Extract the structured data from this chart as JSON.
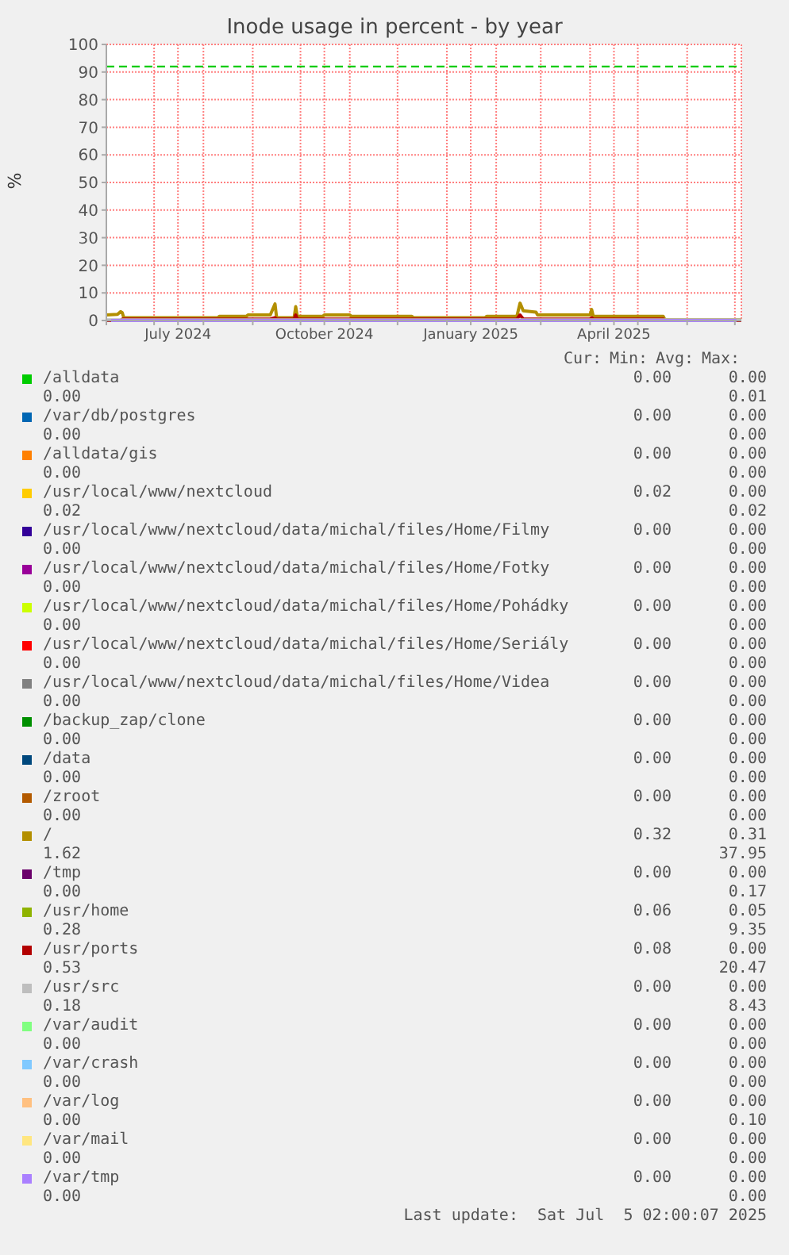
{
  "chart_data": {
    "type": "line",
    "title": "Inode usage in percent - by year",
    "ylabel": "%",
    "x": [
      "2024-06-01",
      "2024-06-08",
      "2024-06-10",
      "2024-06-11",
      "2024-06-12",
      "2024-08-10",
      "2024-08-11",
      "2024-08-28",
      "2024-08-29",
      "2024-09-12",
      "2024-09-15",
      "2024-09-16",
      "2024-09-27",
      "2024-09-28",
      "2024-09-29",
      "2024-10-15",
      "2024-10-16",
      "2024-11-01",
      "2024-11-02",
      "2024-12-10",
      "2024-12-11",
      "2025-01-25",
      "2025-01-26",
      "2025-02-14",
      "2025-02-16",
      "2025-02-18",
      "2025-02-26",
      "2025-02-27",
      "2025-03-01",
      "2025-03-02",
      "2025-04-01",
      "2025-04-02",
      "2025-04-03",
      "2025-05-17",
      "2025-05-18",
      "2025-07-05"
    ],
    "xlim": [
      "2024-06-01",
      "2025-07-05T02:00"
    ],
    "xticks": [
      {
        "value": "2024-06-01",
        "label": null
      },
      {
        "value": "2024-07-01",
        "label": null
      },
      {
        "value": "2024-07-16",
        "label": "July 2024"
      },
      {
        "value": "2024-08-01",
        "label": null
      },
      {
        "value": "2024-09-01",
        "label": null
      },
      {
        "value": "2024-10-01",
        "label": null
      },
      {
        "value": "2024-10-16",
        "label": "October 2024"
      },
      {
        "value": "2024-11-01",
        "label": null
      },
      {
        "value": "2024-12-01",
        "label": null
      },
      {
        "value": "2025-01-01",
        "label": null
      },
      {
        "value": "2025-01-16",
        "label": "January 2025"
      },
      {
        "value": "2025-02-01",
        "label": null
      },
      {
        "value": "2025-03-01",
        "label": null
      },
      {
        "value": "2025-04-01",
        "label": null
      },
      {
        "value": "2025-04-16",
        "label": "April 2025"
      },
      {
        "value": "2025-05-01",
        "label": null
      },
      {
        "value": "2025-06-01",
        "label": null
      },
      {
        "value": "2025-07-01",
        "label": null
      }
    ],
    "ylim": [
      0,
      100
    ],
    "yticks": [
      0,
      10,
      20,
      30,
      40,
      50,
      60,
      70,
      80,
      90,
      100
    ],
    "grid": true,
    "legend": "bottom",
    "marker": "none",
    "line_style": "solid",
    "ref_lines": [
      {
        "axis": "y",
        "value": 92,
        "color": "#00cc00",
        "line_style": "dashed"
      }
    ],
    "series": [
      {
        "name": "/alldata",
        "color": "#00cc00",
        "values": [
          null,
          null,
          null,
          null,
          null,
          null,
          null,
          null,
          null,
          null,
          null,
          null,
          null,
          null,
          null,
          null,
          null,
          null,
          null,
          null,
          null,
          null,
          null,
          null,
          null,
          null,
          null,
          null,
          null,
          null,
          null,
          null,
          null,
          null,
          null,
          null
        ]
      },
      {
        "name": "/var/db/postgres",
        "color": "#0066b3",
        "values": [
          null,
          null,
          null,
          null,
          null,
          null,
          null,
          null,
          null,
          null,
          null,
          null,
          null,
          null,
          null,
          null,
          null,
          null,
          null,
          null,
          null,
          null,
          null,
          null,
          null,
          null,
          null,
          null,
          null,
          null,
          null,
          null,
          null,
          null,
          null,
          null
        ]
      },
      {
        "name": "/alldata/gis",
        "color": "#ff8000",
        "values": [
          null,
          null,
          null,
          null,
          null,
          null,
          null,
          null,
          null,
          null,
          null,
          null,
          null,
          null,
          null,
          null,
          null,
          null,
          null,
          null,
          null,
          null,
          null,
          null,
          null,
          null,
          null,
          null,
          null,
          null,
          null,
          null,
          null,
          null,
          null,
          null
        ]
      },
      {
        "name": "/usr/local/www/nextcloud",
        "color": "#ffcc00",
        "values": [
          null,
          null,
          null,
          null,
          null,
          null,
          null,
          null,
          null,
          null,
          null,
          null,
          null,
          null,
          null,
          null,
          null,
          null,
          null,
          null,
          null,
          null,
          null,
          null,
          null,
          null,
          null,
          null,
          null,
          null,
          null,
          null,
          null,
          null,
          null,
          null
        ]
      },
      {
        "name": "/usr/local/www/nextcloud/data/michal/files/Home/Filmy",
        "color": "#330099",
        "values": [
          null,
          null,
          null,
          null,
          null,
          null,
          null,
          null,
          null,
          null,
          null,
          null,
          null,
          null,
          null,
          null,
          null,
          null,
          null,
          null,
          null,
          null,
          null,
          null,
          null,
          null,
          null,
          null,
          null,
          null,
          null,
          null,
          null,
          null,
          null,
          null
        ]
      },
      {
        "name": "/usr/local/www/nextcloud/data/michal/files/Home/Fotky",
        "color": "#990099",
        "values": [
          null,
          null,
          null,
          null,
          null,
          null,
          null,
          null,
          null,
          null,
          null,
          null,
          null,
          null,
          null,
          null,
          null,
          null,
          null,
          null,
          null,
          null,
          null,
          null,
          null,
          null,
          null,
          null,
          null,
          null,
          null,
          null,
          null,
          null,
          null,
          null
        ]
      },
      {
        "name": "/usr/local/www/nextcloud/data/michal/files/Home/Pohádky",
        "color": "#ccff00",
        "values": [
          null,
          null,
          null,
          null,
          null,
          null,
          null,
          null,
          null,
          null,
          null,
          null,
          null,
          null,
          null,
          null,
          null,
          null,
          null,
          null,
          null,
          null,
          null,
          null,
          null,
          null,
          null,
          null,
          null,
          null,
          null,
          null,
          null,
          null,
          null,
          null
        ]
      },
      {
        "name": "/usr/local/www/nextcloud/data/michal/files/Home/Seriály",
        "color": "#ff0000",
        "values": [
          null,
          null,
          null,
          null,
          null,
          null,
          null,
          null,
          null,
          null,
          null,
          null,
          null,
          null,
          null,
          null,
          null,
          null,
          null,
          null,
          null,
          null,
          null,
          null,
          null,
          null,
          null,
          null,
          null,
          null,
          null,
          null,
          null,
          null,
          null,
          null
        ]
      },
      {
        "name": "/usr/local/www/nextcloud/data/michal/files/Home/Videa",
        "color": "#808080",
        "values": [
          null,
          null,
          null,
          null,
          null,
          null,
          null,
          null,
          null,
          null,
          null,
          null,
          null,
          null,
          null,
          null,
          null,
          null,
          null,
          null,
          null,
          null,
          null,
          null,
          null,
          null,
          null,
          null,
          null,
          null,
          null,
          null,
          null,
          null,
          null,
          null
        ]
      },
      {
        "name": "/backup_zap/clone",
        "color": "#008f00",
        "values": [
          null,
          null,
          null,
          null,
          null,
          null,
          null,
          null,
          null,
          null,
          null,
          null,
          null,
          null,
          null,
          null,
          null,
          null,
          null,
          null,
          null,
          null,
          null,
          null,
          null,
          null,
          null,
          null,
          null,
          null,
          null,
          null,
          null,
          null,
          null,
          null
        ]
      },
      {
        "name": "/data",
        "color": "#00487d",
        "values": [
          null,
          null,
          null,
          null,
          null,
          null,
          null,
          null,
          null,
          null,
          null,
          null,
          null,
          null,
          null,
          null,
          null,
          null,
          null,
          null,
          null,
          null,
          null,
          null,
          null,
          null,
          null,
          null,
          null,
          null,
          null,
          null,
          null,
          null,
          null,
          null
        ]
      },
      {
        "name": "/zroot",
        "color": "#b35a00",
        "values": [
          null,
          null,
          null,
          null,
          null,
          null,
          null,
          null,
          null,
          null,
          null,
          null,
          null,
          null,
          null,
          null,
          null,
          null,
          null,
          null,
          null,
          null,
          null,
          null,
          null,
          null,
          null,
          null,
          null,
          null,
          null,
          null,
          null,
          null,
          null,
          null
        ]
      },
      {
        "name": "/",
        "color": "#b38f00",
        "values": [
          2.0,
          2.2,
          3.2,
          2.8,
          1.0,
          1.0,
          1.5,
          1.5,
          2.0,
          2.0,
          6.0,
          1.0,
          1.0,
          5.0,
          1.5,
          1.5,
          2.0,
          2.0,
          1.5,
          1.5,
          1.0,
          1.0,
          1.5,
          1.5,
          6.3,
          3.5,
          3.0,
          2.0,
          2.0,
          2.0,
          2.0,
          4.0,
          1.5,
          1.5,
          0.3,
          0.3
        ]
      },
      {
        "name": "/tmp",
        "color": "#6b006b",
        "values": [
          null,
          null,
          null,
          null,
          null,
          null,
          null,
          null,
          null,
          null,
          null,
          null,
          null,
          null,
          null,
          null,
          null,
          null,
          null,
          null,
          null,
          null,
          null,
          null,
          null,
          null,
          null,
          null,
          null,
          null,
          null,
          null,
          null,
          null,
          null,
          null
        ]
      },
      {
        "name": "/usr/home",
        "color": "#8fb300",
        "values": [
          null,
          null,
          null,
          null,
          null,
          null,
          null,
          null,
          null,
          null,
          null,
          null,
          null,
          null,
          null,
          null,
          null,
          null,
          null,
          null,
          null,
          null,
          null,
          null,
          null,
          null,
          null,
          null,
          null,
          null,
          null,
          null,
          null,
          null,
          null,
          null
        ]
      },
      {
        "name": "/usr/ports",
        "color": "#b30000",
        "values": [
          0,
          0,
          0,
          0.5,
          0.5,
          0.5,
          0.5,
          0.5,
          0.5,
          0.5,
          1.0,
          0.5,
          0.5,
          2.0,
          0.5,
          0.5,
          0.5,
          0.5,
          0.5,
          0.5,
          0.5,
          0.5,
          0.5,
          0.5,
          2.0,
          0.5,
          0.5,
          0.5,
          0.5,
          0.5,
          0.5,
          1.0,
          0.5,
          0.5,
          0,
          0
        ]
      },
      {
        "name": "/usr/src",
        "color": "#bebebe",
        "x": [
          "2024-06-01",
          "2025-07-05"
        ],
        "values": [
          0.2,
          0.2
        ]
      },
      {
        "name": "/var/audit",
        "color": "#80ff80",
        "values": [
          null,
          null,
          null,
          null,
          null,
          null,
          null,
          null,
          null,
          null,
          null,
          null,
          null,
          null,
          null,
          null,
          null,
          null,
          null,
          null,
          null,
          null,
          null,
          null,
          null,
          null,
          null,
          null,
          null,
          null,
          null,
          null,
          null,
          null,
          null,
          null
        ]
      },
      {
        "name": "/var/crash",
        "color": "#80c9ff",
        "values": [
          null,
          null,
          null,
          null,
          null,
          null,
          null,
          null,
          null,
          null,
          null,
          null,
          null,
          null,
          null,
          null,
          null,
          null,
          null,
          null,
          null,
          null,
          null,
          null,
          null,
          null,
          null,
          null,
          null,
          null,
          null,
          null,
          null,
          null,
          null,
          null
        ]
      },
      {
        "name": "/var/log",
        "color": "#ffc080",
        "values": [
          null,
          null,
          null,
          null,
          null,
          null,
          null,
          null,
          null,
          null,
          null,
          null,
          null,
          null,
          null,
          null,
          null,
          null,
          null,
          null,
          null,
          null,
          null,
          null,
          null,
          null,
          null,
          null,
          null,
          null,
          null,
          null,
          null,
          null,
          null,
          null
        ]
      },
      {
        "name": "/var/mail",
        "color": "#ffe680",
        "values": [
          null,
          null,
          null,
          null,
          null,
          null,
          null,
          null,
          null,
          null,
          null,
          null,
          null,
          null,
          null,
          null,
          null,
          null,
          null,
          null,
          null,
          null,
          null,
          null,
          null,
          null,
          null,
          null,
          null,
          null,
          null,
          null,
          null,
          null,
          null,
          null
        ]
      },
      {
        "name": "/var/tmp",
        "color": "#aa80ff",
        "x": [
          "2024-06-04",
          "2025-07-02"
        ],
        "values": [
          0,
          0
        ]
      }
    ],
    "annotations": [
      "Cur:",
      "Min:",
      "Avg:",
      "Max:",
      "0.00",
      "0.00",
      "0.00",
      "0.01",
      "0.00",
      "0.00",
      "0.00",
      "0.00",
      "0.00",
      "0.00",
      "0.00",
      "0.00",
      "0.02",
      "0.00",
      "0.02",
      "0.02",
      "0.00",
      "0.00",
      "0.00",
      "0.00",
      "0.00",
      "0.00",
      "0.00",
      "0.00",
      "0.00",
      "0.00",
      "0.00",
      "0.00",
      "0.00",
      "0.00",
      "0.00",
      "0.00",
      "0.00",
      "0.00",
      "0.00",
      "0.00",
      "0.00",
      "0.00",
      "0.00",
      "0.00",
      "0.00",
      "0.00",
      "0.00",
      "0.00",
      "0.00",
      "0.00",
      "0.00",
      "0.00",
      "0.32",
      "0.31",
      "1.62",
      "37.95",
      "0.00",
      "0.00",
      "0.00",
      "0.17",
      "0.06",
      "0.05",
      "0.28",
      "9.35",
      "0.08",
      "0.00",
      "0.53",
      "20.47",
      "0.00",
      "0.00",
      "0.18",
      "8.43",
      "0.00",
      "0.00",
      "0.00",
      "0.00",
      "0.00",
      "0.00",
      "0.00",
      "0.00",
      "0.00",
      "0.00",
      "0.00",
      "0.10",
      "0.00",
      "0.00",
      "0.00",
      "0.00",
      "0.00",
      "0.00",
      "0.00",
      "0.00",
      "Last update:  Sat Jul  5 02:00:07 2025"
    ]
  }
}
